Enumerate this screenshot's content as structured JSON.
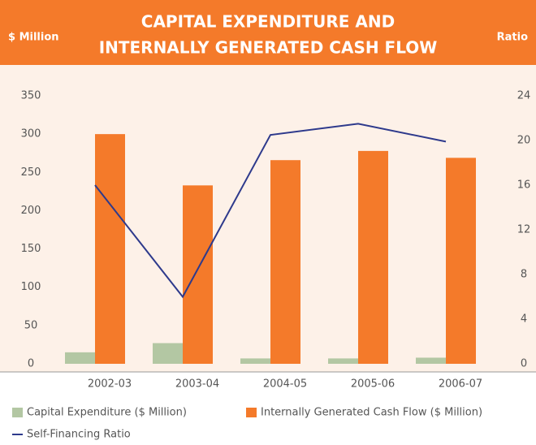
{
  "chart_data": {
    "type": "bar",
    "title": [
      "CAPITAL EXPENDITURE AND",
      "INTERNALLY GENERATED CASH FLOW"
    ],
    "y_label": "$ Million",
    "y2_label": "Ratio",
    "categories": [
      "2002-03",
      "2003-04",
      "2004-05",
      "2005-06",
      "2006-07"
    ],
    "series": [
      {
        "name": "Capital Expenditure ($ Million)",
        "color": "#b3c7a3",
        "type": "bar",
        "values": [
          15,
          27,
          7,
          7,
          8
        ]
      },
      {
        "name": "Internally Generated Cash Flow ($ Million)",
        "color": "#f47a2a",
        "type": "bar",
        "values": [
          300,
          233,
          266,
          278,
          269
        ]
      },
      {
        "name": "Self-Financing Ratio",
        "color": "#2e3a8c",
        "type": "line",
        "axis": "y2",
        "values": [
          16,
          6,
          20.5,
          21.5,
          19.9
        ]
      }
    ],
    "ylim": [
      0,
      350
    ],
    "yticks": [
      0,
      50,
      100,
      150,
      200,
      250,
      300,
      350
    ],
    "y2lim": [
      0,
      24
    ],
    "y2ticks": [
      0,
      4,
      8,
      12,
      16,
      20,
      24
    ]
  }
}
